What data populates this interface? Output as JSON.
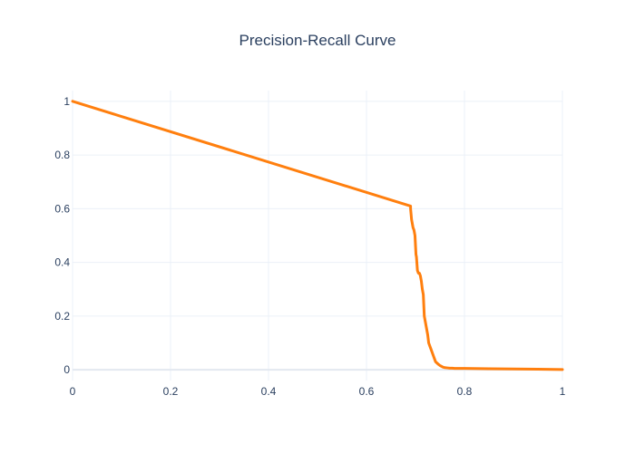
{
  "chart_data": {
    "type": "line",
    "title": "Precision-Recall Curve",
    "xlabel": "",
    "ylabel": "",
    "xlim": [
      0,
      1
    ],
    "ylim": [
      -0.04,
      1.04
    ],
    "x_ticks": [
      0,
      0.2,
      0.4,
      0.6,
      0.8,
      1
    ],
    "x_tick_labels": [
      "0",
      "0.2",
      "0.4",
      "0.6",
      "0.8",
      "1"
    ],
    "y_ticks": [
      0,
      0.2,
      0.4,
      0.6,
      0.8,
      1
    ],
    "y_tick_labels": [
      "0",
      "0.2",
      "0.4",
      "0.6",
      "0.8",
      "1"
    ],
    "grid": true,
    "legend": "none",
    "series": [
      {
        "color": "#ff7f0e",
        "x": [
          0,
          0.69,
          0.69,
          0.692,
          0.693,
          0.695,
          0.697,
          0.699,
          0.701,
          0.702,
          0.704,
          0.706,
          0.708,
          0.71,
          0.712,
          0.714,
          0.716,
          0.718,
          0.72,
          0.721,
          0.723,
          0.725,
          0.727,
          0.729,
          0.731,
          0.733,
          0.735,
          0.737,
          0.739,
          0.741,
          0.744,
          0.747,
          0.75,
          0.753,
          0.756,
          0.76,
          0.765,
          0.77,
          0.775,
          0.78,
          0.79,
          0.8,
          0.85,
          0.9,
          0.95,
          1.0
        ],
        "y": [
          1.0,
          0.61,
          0.6,
          0.56,
          0.55,
          0.53,
          0.52,
          0.5,
          0.43,
          0.42,
          0.37,
          0.36,
          0.36,
          0.35,
          0.33,
          0.3,
          0.28,
          0.2,
          0.18,
          0.17,
          0.15,
          0.13,
          0.1,
          0.09,
          0.08,
          0.07,
          0.06,
          0.05,
          0.04,
          0.03,
          0.025,
          0.02,
          0.016,
          0.013,
          0.01,
          0.008,
          0.007,
          0.006,
          0.006,
          0.005,
          0.005,
          0.005,
          0.004,
          0.003,
          0.002,
          0.001
        ]
      }
    ]
  }
}
